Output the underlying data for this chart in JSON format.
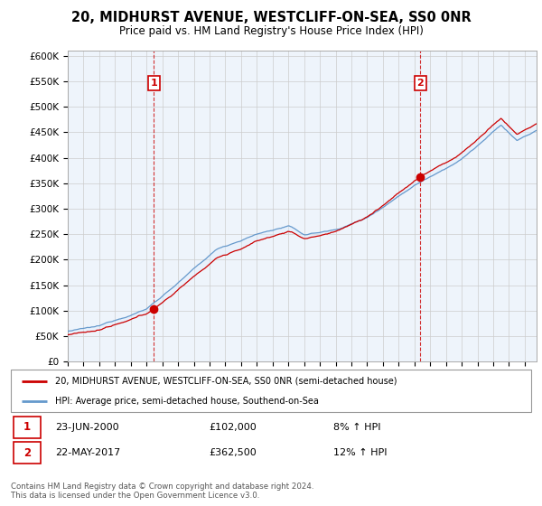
{
  "title": "20, MIDHURST AVENUE, WESTCLIFF-ON-SEA, SS0 0NR",
  "subtitle": "Price paid vs. HM Land Registry's House Price Index (HPI)",
  "ylabel_ticks": [
    "£0",
    "£50K",
    "£100K",
    "£150K",
    "£200K",
    "£250K",
    "£300K",
    "£350K",
    "£400K",
    "£450K",
    "£500K",
    "£550K",
    "£600K"
  ],
  "ytick_vals": [
    0,
    50000,
    100000,
    150000,
    200000,
    250000,
    300000,
    350000,
    400000,
    450000,
    500000,
    550000,
    600000
  ],
  "ylim": [
    0,
    610000
  ],
  "sale1_year": 2000.47,
  "sale1_price": 102000,
  "sale2_year": 2017.38,
  "sale2_price": 362500,
  "red_color": "#cc0000",
  "blue_color": "#6699cc",
  "fill_color": "#ddeeff",
  "grid_color": "#cccccc",
  "bg_color": "#eef4fb",
  "legend_line1": "20, MIDHURST AVENUE, WESTCLIFF-ON-SEA, SS0 0NR (semi-detached house)",
  "legend_line2": "HPI: Average price, semi-detached house, Southend-on-Sea",
  "footer": "Contains HM Land Registry data © Crown copyright and database right 2024.\nThis data is licensed under the Open Government Licence v3.0.",
  "xstart": 1995.0,
  "xend": 2024.75
}
